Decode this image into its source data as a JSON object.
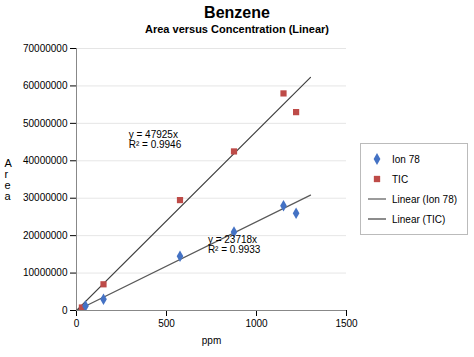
{
  "chart_data": {
    "type": "scatter",
    "title": "Benzene",
    "subtitle": "Area versus Concentration (Linear)",
    "xlabel": "ppm",
    "ylabel": "A\nr\ne\na",
    "xlim": [
      0,
      1500
    ],
    "ylim": [
      0,
      70000000
    ],
    "xticks": [
      0,
      500,
      1000,
      1500
    ],
    "yticks": [
      0,
      10000000,
      20000000,
      30000000,
      40000000,
      50000000,
      60000000,
      70000000
    ],
    "grid": "y",
    "series": [
      {
        "name": "Ion 78",
        "type": "scatter",
        "marker": "diamond",
        "color": "#4472C4",
        "x": [
          50,
          150,
          575,
          875,
          1150,
          1220
        ],
        "values": [
          1200000,
          3000000,
          14500000,
          21000000,
          28000000,
          26000000
        ]
      },
      {
        "name": "TIC",
        "type": "scatter",
        "marker": "square",
        "color": "#BE4B48",
        "x": [
          30,
          150,
          575,
          875,
          1150,
          1220
        ],
        "values": [
          800000,
          7000000,
          29500000,
          42500000,
          58000000,
          53000000
        ]
      },
      {
        "name": "Linear (Ion 78)",
        "type": "line",
        "line_style": "solid",
        "color": "#595959",
        "x": [
          0,
          1300
        ],
        "values": [
          0,
          30833400
        ]
      },
      {
        "name": "Linear (TIC)",
        "type": "line",
        "line_style": "solid",
        "color": "#404040",
        "x": [
          0,
          1300
        ],
        "values": [
          0,
          62302500
        ]
      }
    ],
    "annotations": [
      {
        "text": "y = 47925x\nR² = 0.9946",
        "x": 290,
        "y": 48000000
      },
      {
        "text": "y = 23718x\nR² = 0.9933",
        "x": 730,
        "y": 20000000
      }
    ]
  }
}
